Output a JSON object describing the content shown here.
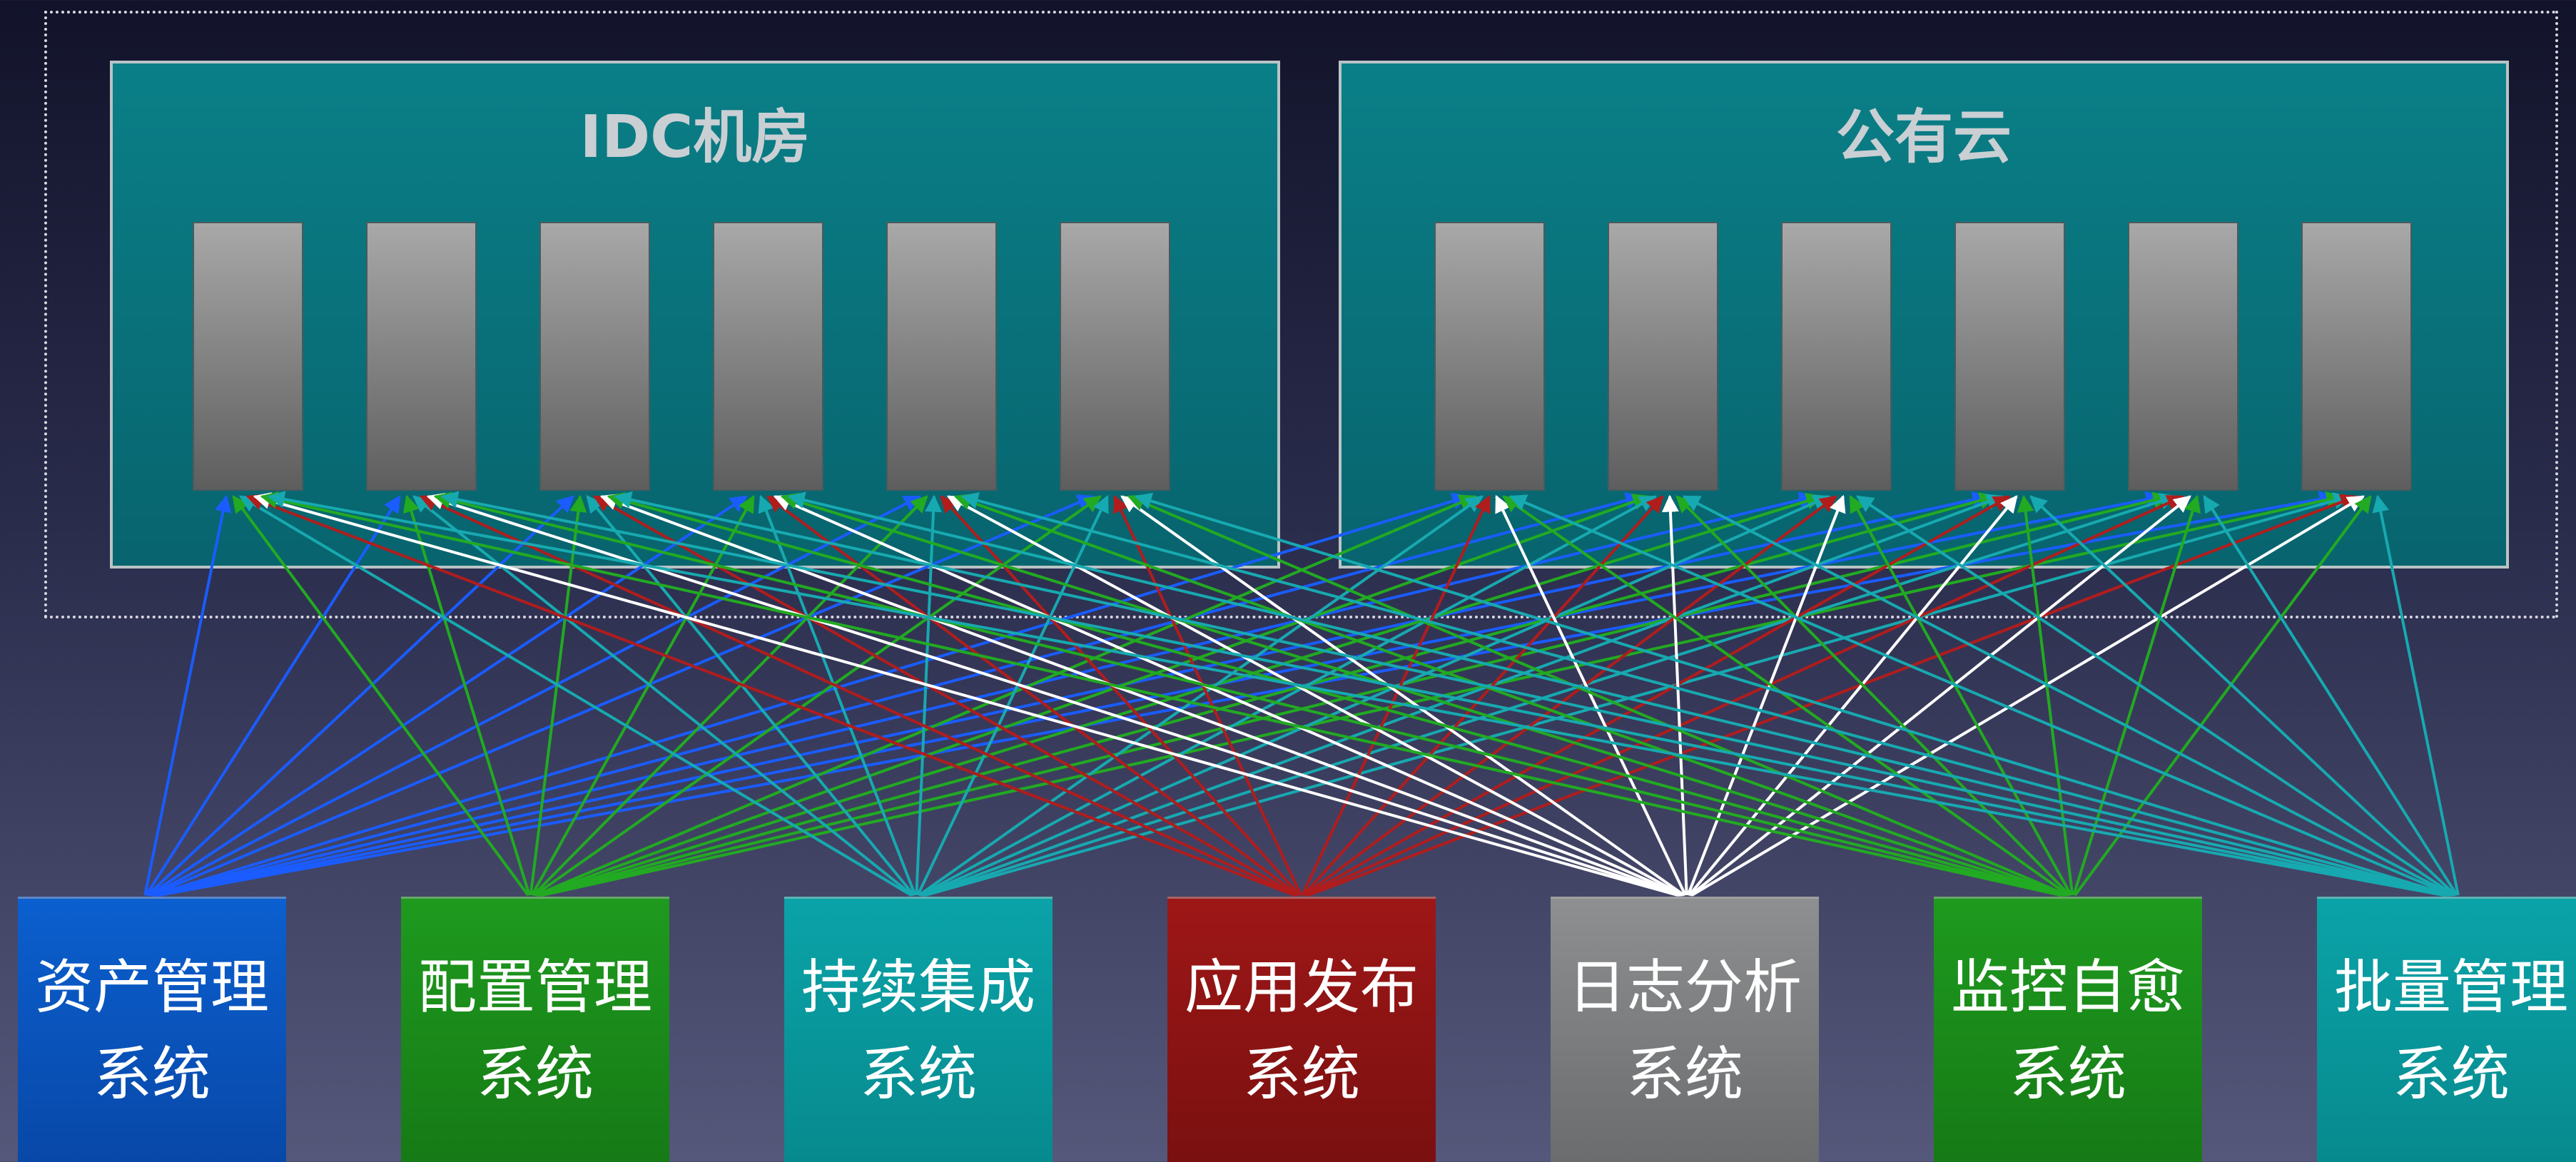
{
  "datacenters": [
    {
      "id": "idc",
      "title": "IDC机房",
      "servers": 6
    },
    {
      "id": "cloud",
      "title": "公有云",
      "servers": 6
    }
  ],
  "systems": [
    {
      "id": "asset",
      "line1": "资产管理",
      "line2": "系统",
      "color": "#0b5fcf",
      "color2": "#0848a8",
      "arrow": "#1a5cff"
    },
    {
      "id": "config",
      "line1": "配置管理",
      "line2": "系统",
      "color": "#1e9a1e",
      "color2": "#167a16",
      "arrow": "#22aa22"
    },
    {
      "id": "ci",
      "line1": "持续集成",
      "line2": "系统",
      "color": "#0aa3a8",
      "color2": "#078a8e",
      "arrow": "#17a9b0"
    },
    {
      "id": "release",
      "line1": "应用发布",
      "line2": "系统",
      "color": "#9e1717",
      "color2": "#7a1010",
      "arrow": "#b01d1d"
    },
    {
      "id": "log",
      "line1": "日志分析",
      "line2": "系统",
      "color": "#8d8f90",
      "color2": "#6a6c6e",
      "arrow": "#ffffff"
    },
    {
      "id": "monitor",
      "line1": "监控自愈",
      "line2": "系统",
      "color": "#1e9a1e",
      "color2": "#167a16",
      "arrow": "#22aa22"
    },
    {
      "id": "batch",
      "line1": "批量管理",
      "line2": "系统",
      "color": "#0aa3a8",
      "color2": "#078a8e",
      "arrow": "#17a9b0"
    }
  ]
}
